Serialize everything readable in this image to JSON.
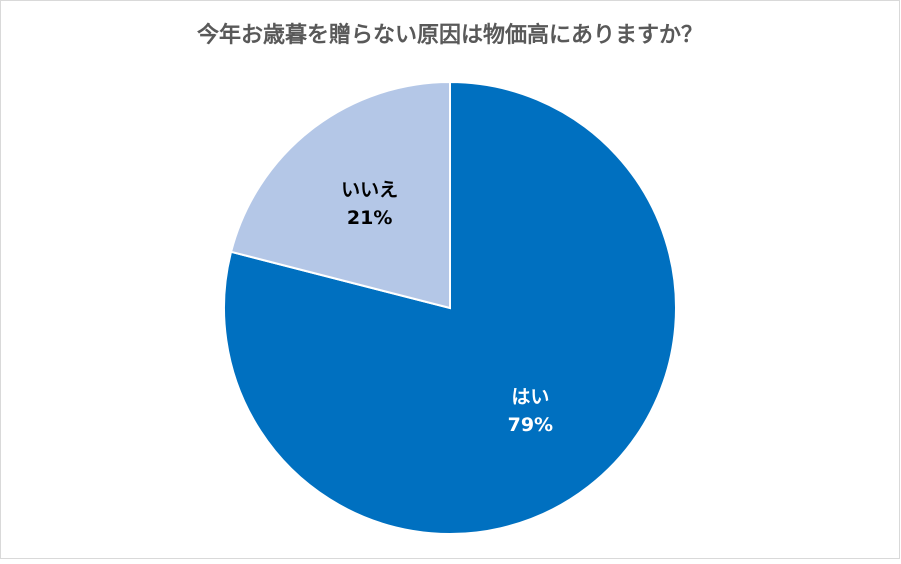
{
  "chart_data": {
    "type": "pie",
    "title": "今年お歳暮を贈らない原因は物価高にありますか？",
    "categories": [
      "はい",
      "いいえ"
    ],
    "values": [
      79,
      21
    ],
    "value_labels": [
      "79%",
      "21%"
    ],
    "colors": [
      "#0070c0",
      "#b4c7e7"
    ]
  }
}
